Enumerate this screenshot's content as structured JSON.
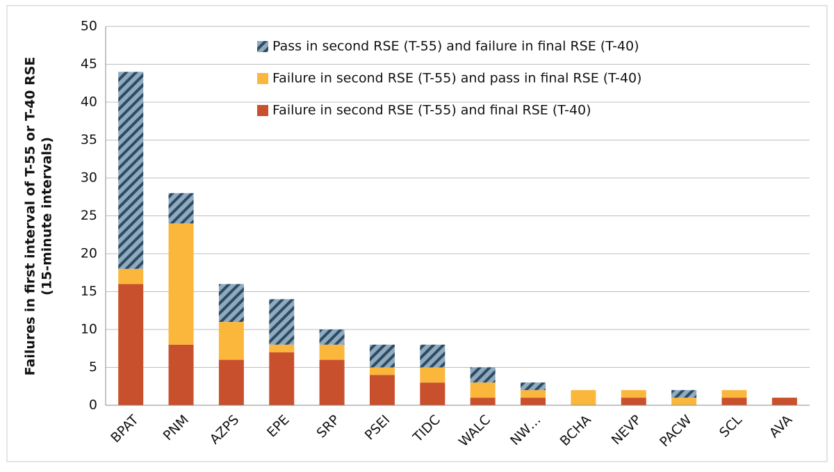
{
  "chart_data": {
    "type": "stacked_bar",
    "ylabel": [
      "Failures in first interval of T-55 or T-40 RSE",
      "(15-minute intervals)"
    ],
    "categories": [
      "BPAT",
      "PNM",
      "AZPS",
      "EPE",
      "SRP",
      "PSEI",
      "TIDC",
      "WALC",
      "NW…",
      "BCHA",
      "NEVP",
      "PACW",
      "SCL",
      "AVA"
    ],
    "series": [
      {
        "name": "Failure in second RSE (T-55) and final RSE (T-40)",
        "color": "#c9502c",
        "values": [
          16,
          8,
          6,
          7,
          6,
          4,
          3,
          1,
          1,
          0,
          1,
          0,
          1,
          1
        ]
      },
      {
        "name": "Failure in second RSE (T-55) and pass in final RSE (T-40)",
        "color": "#fbb73c",
        "values": [
          2,
          16,
          5,
          1,
          2,
          1,
          2,
          2,
          1,
          2,
          1,
          1,
          1,
          0
        ]
      },
      {
        "name": "Pass in second RSE (T-55) and failure in final RSE (T-40)",
        "color": "#8eaabe",
        "hatch_color": "#2f4b63",
        "hatch": true,
        "values": [
          26,
          4,
          5,
          6,
          2,
          3,
          3,
          2,
          1,
          0,
          0,
          1,
          0,
          0
        ]
      }
    ],
    "ylim": [
      0,
      50
    ],
    "yticks": [
      0,
      5,
      10,
      15,
      20,
      25,
      30,
      35,
      40,
      45,
      50
    ],
    "grid": true,
    "legend": "top-center"
  }
}
